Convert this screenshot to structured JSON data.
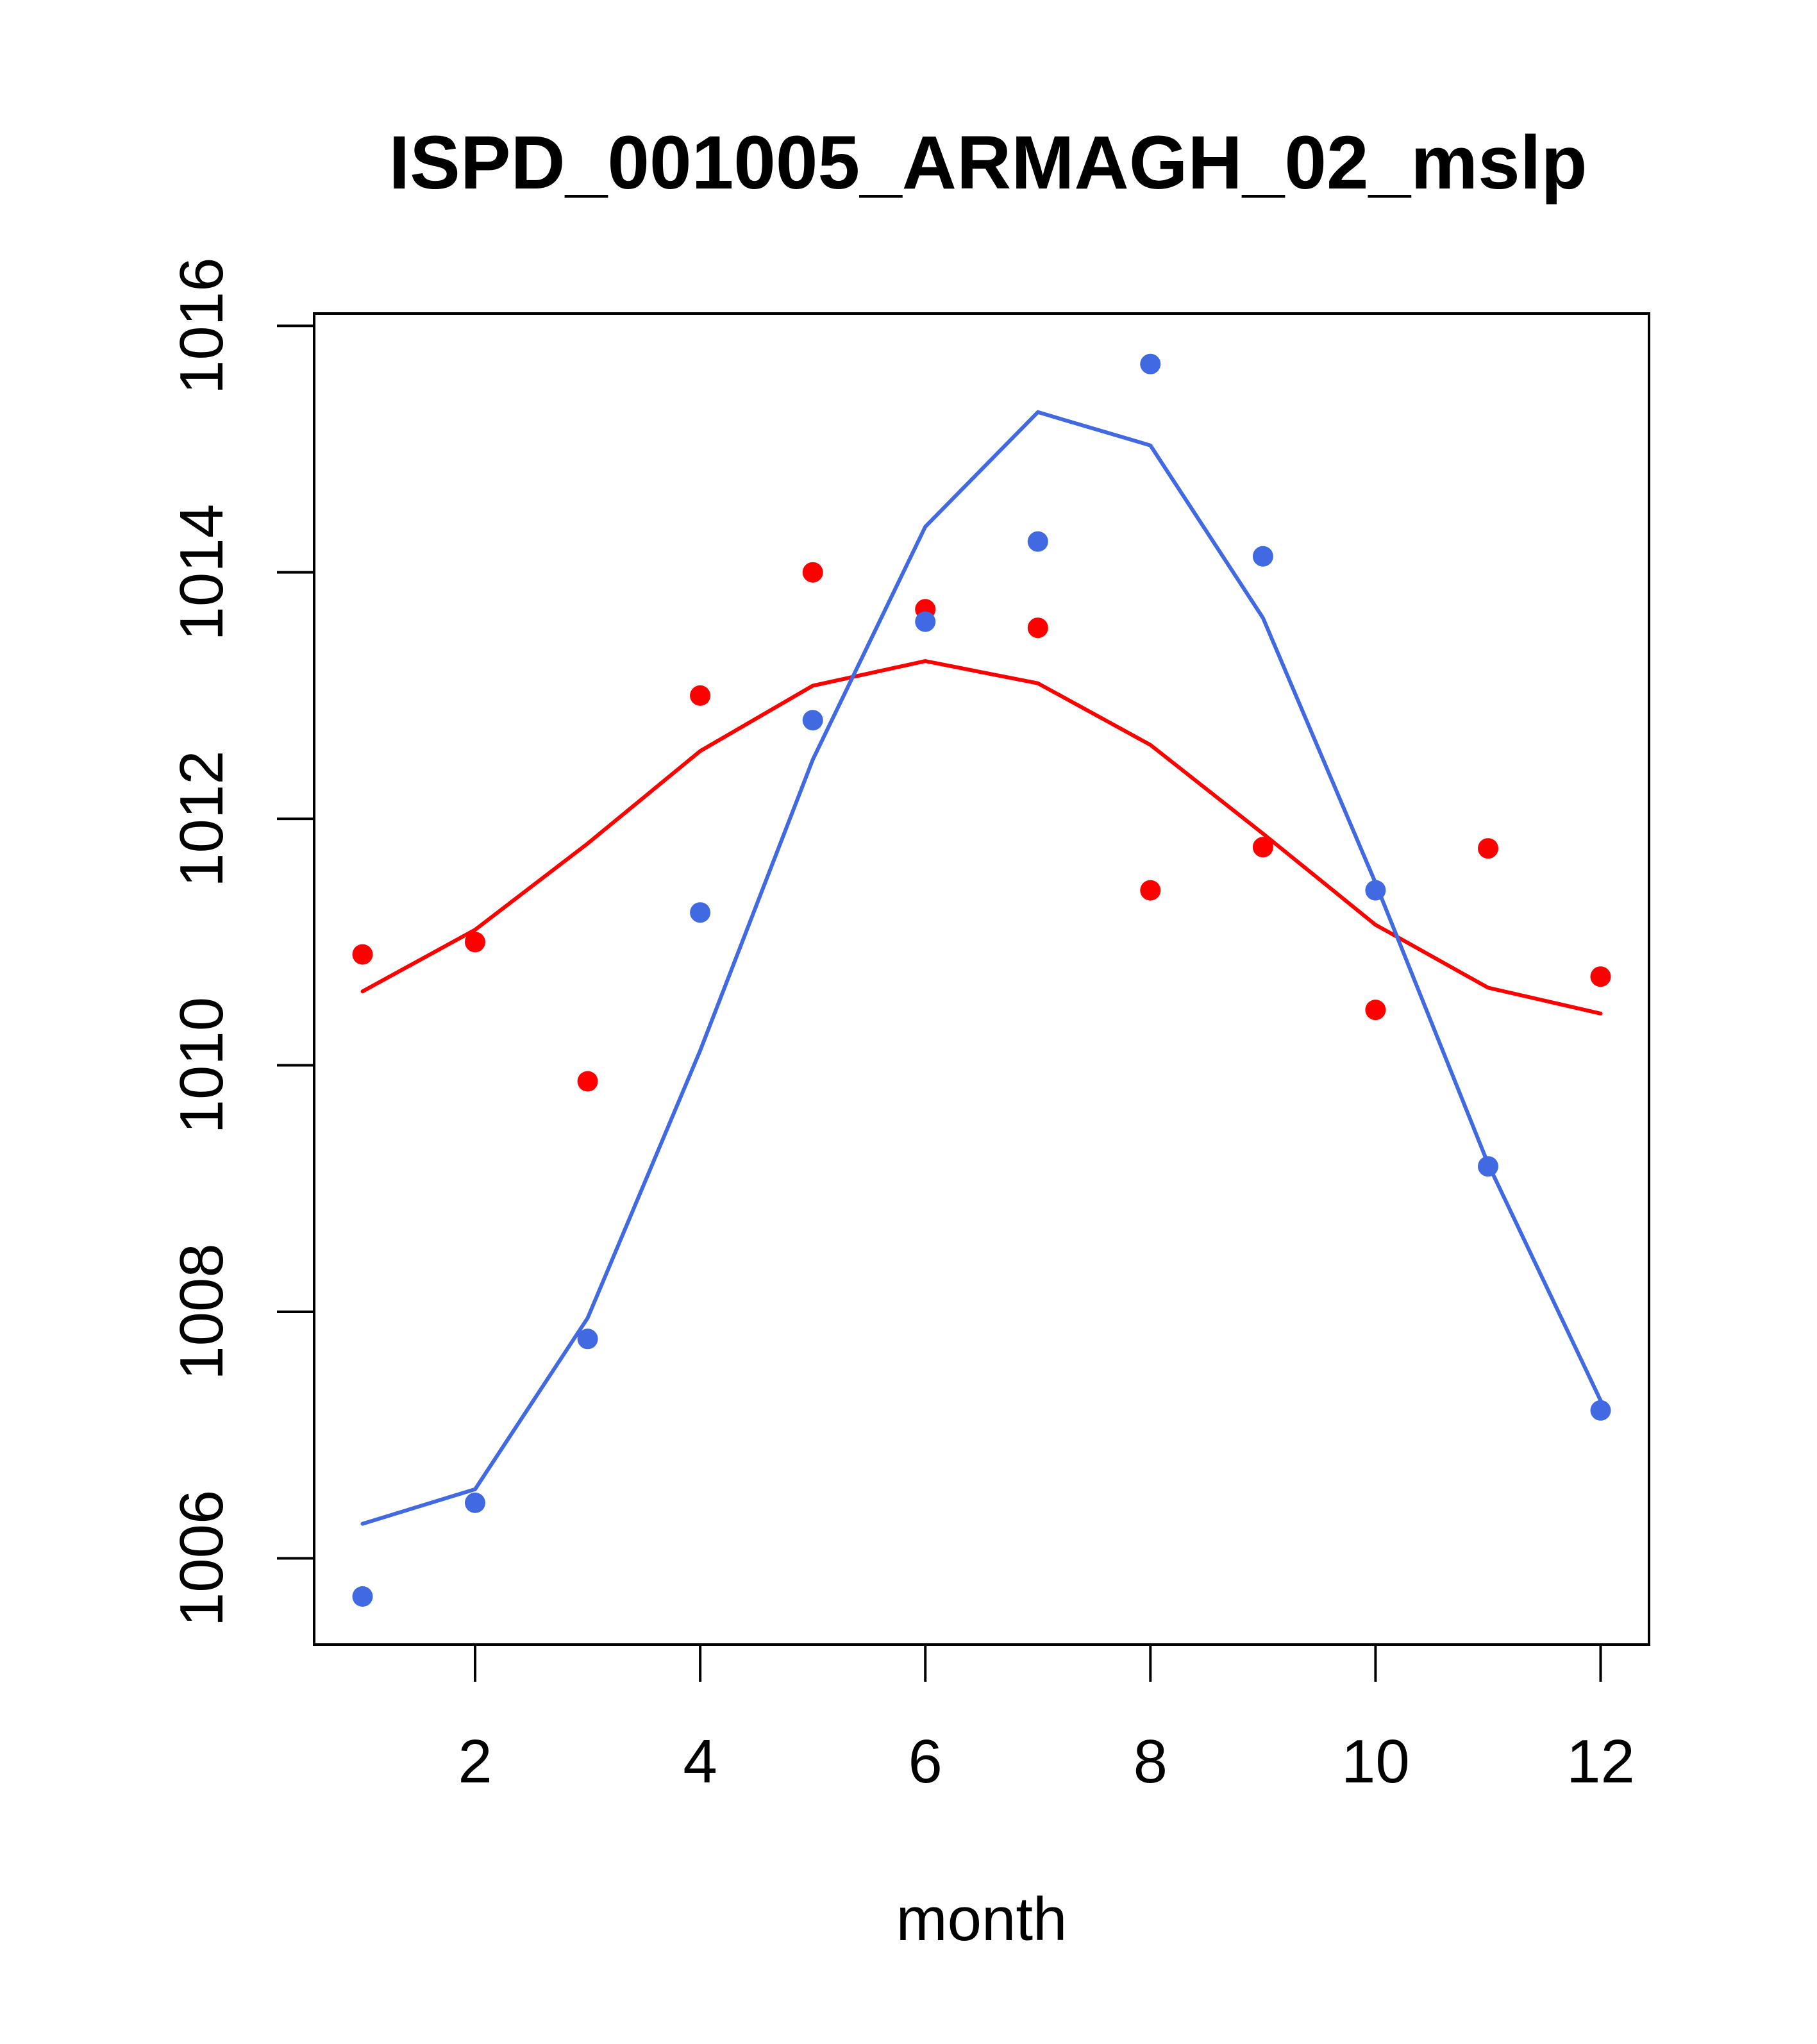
{
  "chart_data": {
    "type": "scatter",
    "title": "ISPD_001005_ARMAGH_02_mslp",
    "xlabel": "month",
    "ylabel": "",
    "xlim": [
      0.57,
      12.43
    ],
    "ylim": [
      1005.3,
      1016.1
    ],
    "xticks": [
      2,
      4,
      6,
      8,
      10,
      12
    ],
    "yticks": [
      1006,
      1008,
      1010,
      1012,
      1014,
      1016
    ],
    "x": [
      1,
      2,
      3,
      4,
      5,
      6,
      7,
      8,
      9,
      10,
      11,
      12
    ],
    "series": [
      {
        "name": "red points",
        "kind": "points",
        "color": "#ff0000",
        "values": [
          1010.9,
          1011.0,
          1009.87,
          1013.0,
          1014.0,
          1013.7,
          1013.55,
          1011.42,
          1011.77,
          1010.45,
          1011.76,
          1010.72
        ]
      },
      {
        "name": "red fit",
        "kind": "line",
        "color": "#ff0000",
        "values": [
          1010.6,
          1011.1,
          1011.8,
          1012.55,
          1013.08,
          1013.28,
          1013.1,
          1012.6,
          1011.88,
          1011.14,
          1010.63,
          1010.42
        ]
      },
      {
        "name": "blue points",
        "kind": "points",
        "color": "#4169e1",
        "values": [
          1005.69,
          1006.45,
          1007.78,
          1011.24,
          1012.8,
          1013.6,
          1014.25,
          1015.69,
          1014.13,
          1011.42,
          1009.18,
          1007.2
        ]
      },
      {
        "name": "blue fit",
        "kind": "line",
        "color": "#4169e1",
        "values": [
          1006.28,
          1006.56,
          1007.95,
          1010.12,
          1012.48,
          1014.37,
          1015.3,
          1015.03,
          1013.63,
          1011.48,
          1009.2,
          1007.28
        ]
      }
    ]
  }
}
